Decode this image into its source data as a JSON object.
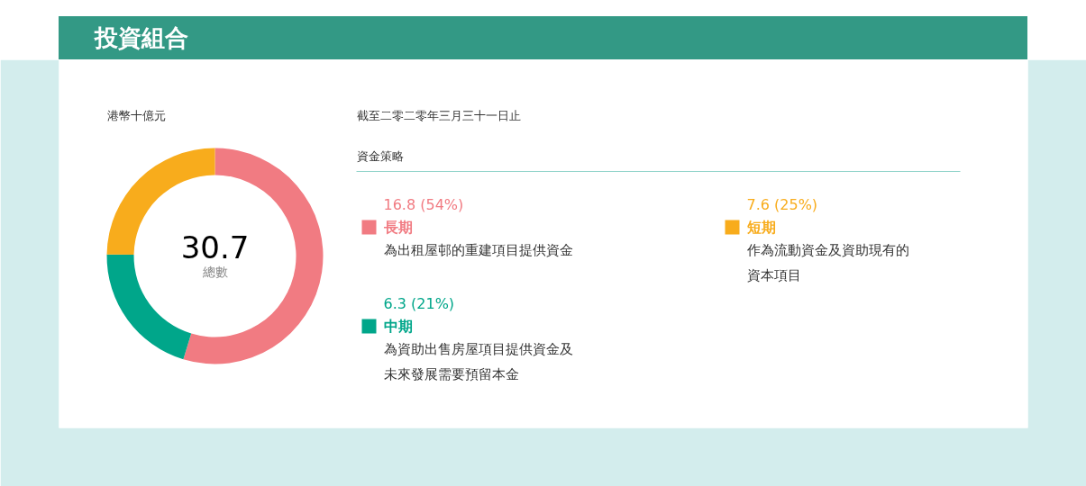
{
  "chart_data": {
    "type": "donut",
    "title": "投資組合",
    "subtitle": "截至二零二零年三月三十一日止",
    "legend_title": "資金策略",
    "categories": [
      "長期",
      "中期",
      "短期"
    ],
    "values": [
      16.8,
      6.3,
      7.6
    ],
    "colors": [
      "#f17b82",
      "#00a68a",
      "#f8ac1c"
    ],
    "value_labels": [
      "16.8 (54%)",
      "6.3 (21%)",
      "7.6 (25%)"
    ],
    "legend": "right",
    "annotations": [
      "港幣十億元",
      "30.7",
      "總數",
      "為出租屋邨的重建項目提供資金",
      "為資助出售房屋項目提供資金及未來發展需要預留本金",
      "作為流動資金及資助現有的資本項目"
    ]
  }
}
